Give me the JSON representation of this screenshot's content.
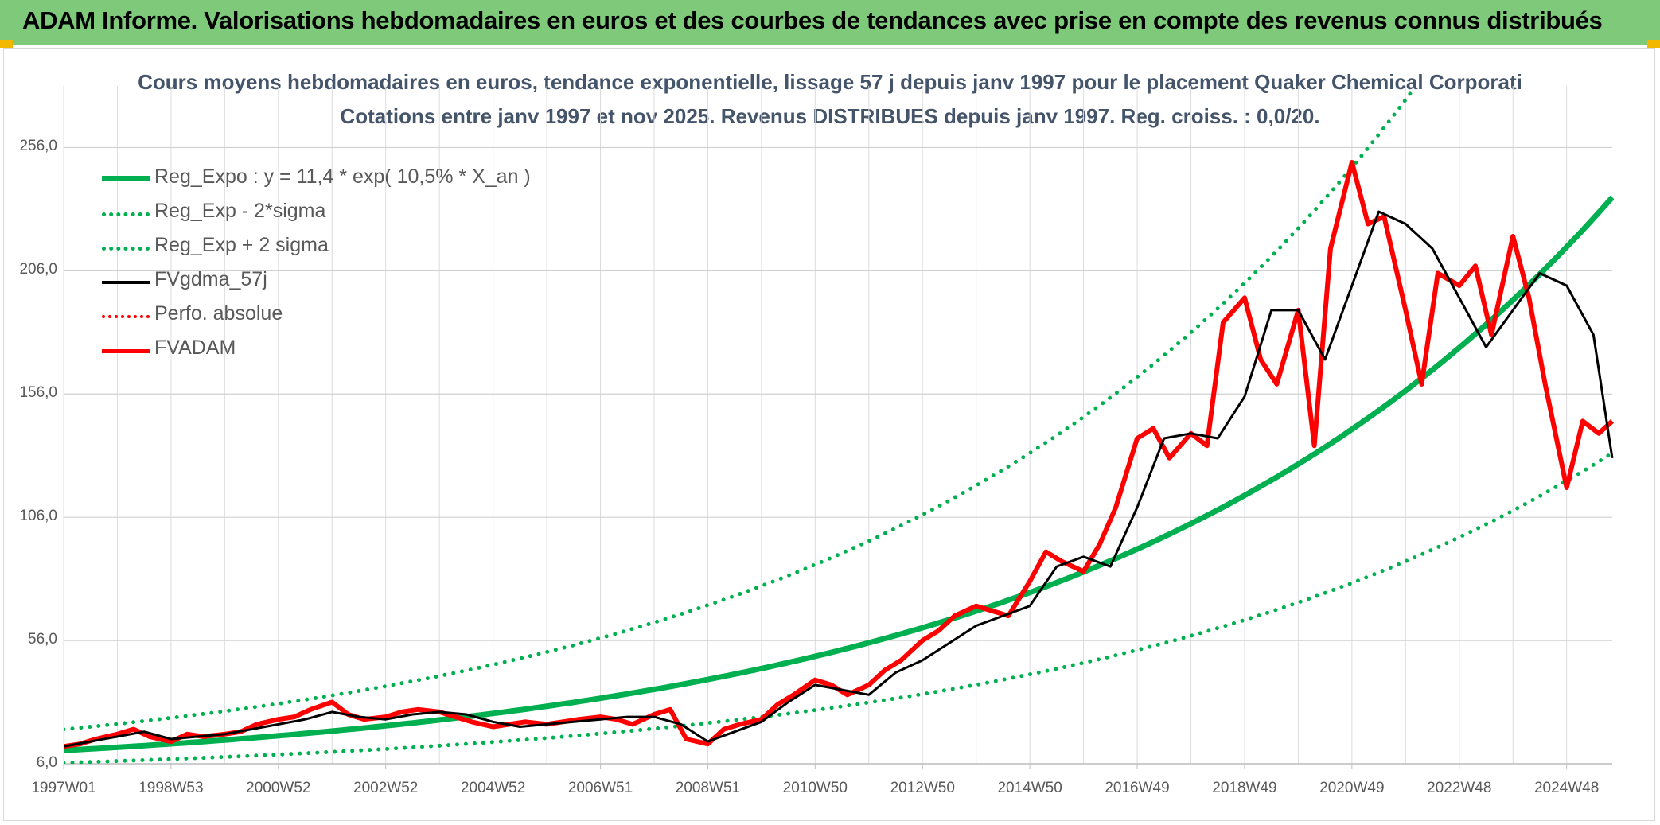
{
  "header": {
    "title": "ADAM Informe. Valorisations hebdomadaires en euros et des courbes de tendances avec prise en compte des revenus connus distribués"
  },
  "chart_data": {
    "type": "line",
    "title": "Cours moyens hebdomadaires en euros, tendance exponentielle, lissage 57 j depuis janv 1997 pour le placement Quaker Chemical Corporati",
    "subtitle": "Cotations entre janv 1997 et nov 2025. Revenus DISTRIBUES depuis janv 1997. Reg. croiss. : 0,0/20.",
    "ylim": [
      6,
      281
    ],
    "yticks": [
      "6,0",
      "56,0",
      "106,0",
      "156,0",
      "206,0",
      "256,0"
    ],
    "ytick_values": [
      6,
      56,
      106,
      156,
      206,
      256
    ],
    "xlim": [
      1997.0,
      2025.85
    ],
    "xticks": [
      "1997W01",
      "1998W53",
      "2000W52",
      "2002W52",
      "2004W52",
      "2006W51",
      "2008W51",
      "2010W50",
      "2012W50",
      "2014W50",
      "2016W49",
      "2018W49",
      "2020W49",
      "2022W48",
      "2024W48"
    ],
    "xtick_values": [
      1997.0,
      1999.0,
      2001.0,
      2003.0,
      2005.0,
      2007.0,
      2009.0,
      2011.0,
      2013.0,
      2015.0,
      2017.0,
      2019.0,
      2021.0,
      2023.0,
      2025.0
    ],
    "grid": true,
    "legend_position": "top-left",
    "regression": {
      "a": 11.4,
      "rate": 0.105,
      "sigma_factor_upper": 1.75,
      "sigma_factor_lower": 0.56
    },
    "series": [
      {
        "name": "Reg_Expo : y = 11,4 * exp( 10,5% *  X_an )",
        "color": "#00b050",
        "style": "solid-thick"
      },
      {
        "name": "Reg_Exp - 2*sigma",
        "color": "#00b050",
        "style": "dotted"
      },
      {
        "name": "Reg_Exp + 2 sigma",
        "color": "#00b050",
        "style": "dotted"
      },
      {
        "name": "FVgdma_57j",
        "color": "#000000",
        "style": "solid",
        "x": [
          1997.0,
          1997.5,
          1998.0,
          1998.5,
          1999.0,
          1999.5,
          2000.0,
          2000.5,
          2001.0,
          2001.5,
          2002.0,
          2002.5,
          2003.0,
          2003.5,
          2004.0,
          2004.5,
          2005.0,
          2005.5,
          2006.0,
          2006.5,
          2007.0,
          2007.5,
          2008.0,
          2008.5,
          2009.0,
          2009.5,
          2010.0,
          2010.5,
          2011.0,
          2011.5,
          2012.0,
          2012.5,
          2013.0,
          2013.5,
          2014.0,
          2014.5,
          2015.0,
          2015.5,
          2016.0,
          2016.5,
          2017.0,
          2017.5,
          2018.0,
          2018.5,
          2019.0,
          2019.5,
          2020.0,
          2020.5,
          2021.0,
          2021.5,
          2022.0,
          2022.5,
          2023.0,
          2023.5,
          2024.0,
          2024.5,
          2025.0,
          2025.5,
          2025.85
        ],
        "values": [
          13,
          15,
          17,
          19,
          16,
          17,
          18,
          20,
          22,
          24,
          27,
          25,
          24,
          26,
          27,
          26,
          23,
          21,
          22,
          23,
          24,
          25,
          25,
          22,
          15,
          19,
          23,
          31,
          38,
          36,
          34,
          43,
          48,
          55,
          62,
          66,
          70,
          86,
          90,
          86,
          110,
          138,
          140,
          138,
          155,
          190,
          190,
          170,
          200,
          230,
          225,
          215,
          195,
          175,
          190,
          205,
          200,
          180,
          130
        ]
      },
      {
        "name": "Perfo. absolue",
        "color": "#ff0000",
        "style": "dotted"
      },
      {
        "name": "FVADAM",
        "color": "#ff0000",
        "style": "solid-thick",
        "x": [
          1997.0,
          1997.3,
          1997.6,
          1998.0,
          1998.3,
          1998.6,
          1999.0,
          1999.3,
          1999.6,
          2000.0,
          2000.3,
          2000.6,
          2001.0,
          2001.3,
          2001.6,
          2002.0,
          2002.3,
          2002.6,
          2003.0,
          2003.3,
          2003.6,
          2004.0,
          2004.3,
          2004.6,
          2005.0,
          2005.3,
          2005.6,
          2006.0,
          2006.3,
          2006.6,
          2007.0,
          2007.3,
          2007.6,
          2008.0,
          2008.3,
          2008.6,
          2009.0,
          2009.3,
          2009.6,
          2010.0,
          2010.3,
          2010.6,
          2011.0,
          2011.3,
          2011.6,
          2012.0,
          2012.3,
          2012.6,
          2013.0,
          2013.3,
          2013.6,
          2014.0,
          2014.3,
          2014.6,
          2015.0,
          2015.3,
          2015.6,
          2016.0,
          2016.3,
          2016.6,
          2017.0,
          2017.3,
          2017.6,
          2018.0,
          2018.3,
          2018.6,
          2019.0,
          2019.3,
          2019.6,
          2020.0,
          2020.3,
          2020.6,
          2021.0,
          2021.3,
          2021.6,
          2022.0,
          2022.3,
          2022.6,
          2023.0,
          2023.3,
          2023.6,
          2024.0,
          2024.3,
          2024.6,
          2025.0,
          2025.3,
          2025.6,
          2025.85
        ],
        "values": [
          13,
          14,
          16,
          18,
          20,
          17,
          15,
          18,
          17,
          18,
          19,
          22,
          24,
          25,
          28,
          31,
          26,
          24,
          25,
          27,
          28,
          27,
          25,
          23,
          21,
          22,
          23,
          22,
          23,
          24,
          25,
          24,
          22,
          26,
          28,
          16,
          14,
          20,
          22,
          24,
          30,
          34,
          40,
          38,
          34,
          38,
          44,
          48,
          56,
          60,
          66,
          70,
          68,
          66,
          80,
          92,
          88,
          84,
          95,
          110,
          138,
          142,
          130,
          140,
          135,
          185,
          195,
          170,
          160,
          190,
          135,
          215,
          250,
          225,
          228,
          190,
          160,
          205,
          200,
          208,
          180,
          220,
          195,
          160,
          118,
          145,
          140,
          145
        ]
      }
    ]
  }
}
